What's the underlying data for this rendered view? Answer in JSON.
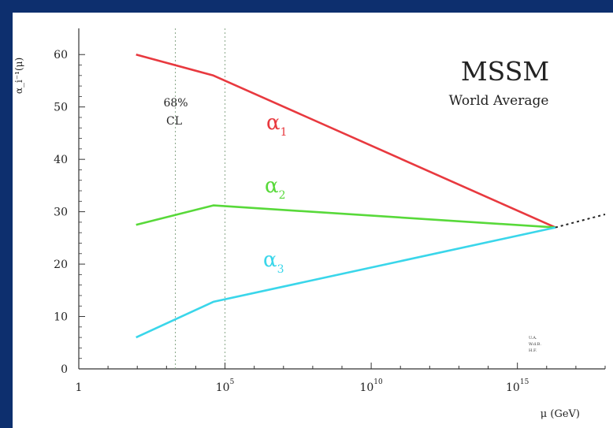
{
  "chart_data": {
    "type": "line",
    "title": "MSSM",
    "subtitle": "World Average",
    "ylabel": "α_i⁻¹(μ)",
    "xlabel": "μ (GeV)",
    "xscale": "log",
    "xlim": [
      1,
      1e+18
    ],
    "ylim": [
      0,
      65
    ],
    "x_tick_labels": [
      {
        "base": "1",
        "exp": ""
      },
      {
        "base": "10",
        "exp": "5"
      },
      {
        "base": "10",
        "exp": "10"
      },
      {
        "base": "10",
        "exp": "15"
      }
    ],
    "y_ticks": [
      "0",
      "10",
      "20",
      "30",
      "40",
      "50",
      "60"
    ],
    "cl_label": [
      "68%",
      "CL"
    ],
    "cl_band_x": [
      2000,
      100000.0
    ],
    "corner_note": [
      "U.A.",
      "W.d.B.",
      "H.F."
    ],
    "series": [
      {
        "name": "α1",
        "color": "#e8393f",
        "x": [
          91,
          40000,
          2e+16
        ],
        "y": [
          60,
          56,
          27
        ]
      },
      {
        "name": "α2",
        "color": "#58d93a",
        "x": [
          91,
          40000,
          2e+16
        ],
        "y": [
          27.5,
          31.2,
          27
        ]
      },
      {
        "name": "α3",
        "color": "#3ad6ea",
        "x": [
          91,
          40000,
          2e+16
        ],
        "y": [
          6,
          12.8,
          27
        ]
      }
    ],
    "extrapolation": {
      "x": [
        2e+16,
        1e+18
      ],
      "y": [
        27,
        29.5
      ]
    }
  }
}
